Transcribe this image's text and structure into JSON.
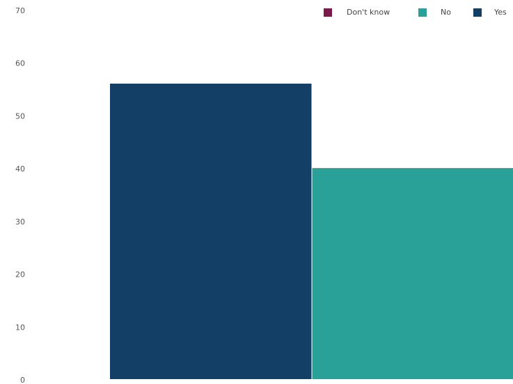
{
  "chart_data": {
    "type": "bar",
    "title": "",
    "xlabel": "",
    "ylabel": "",
    "ylim": [
      0,
      70
    ],
    "yticks": [
      0,
      10,
      20,
      30,
      40,
      50,
      60,
      70
    ],
    "grid": false,
    "legend_position": "top-right",
    "categories": [
      ""
    ],
    "series": [
      {
        "name": "Don't know",
        "color": "#7a1a4a",
        "values": [
          0
        ]
      },
      {
        "name": "No",
        "color": "#2aa198",
        "values": [
          40
        ]
      },
      {
        "name": "Yes",
        "color": "#133f67",
        "values": [
          56
        ]
      }
    ],
    "bar_order": [
      "Yes",
      "No",
      "Don't know"
    ]
  }
}
